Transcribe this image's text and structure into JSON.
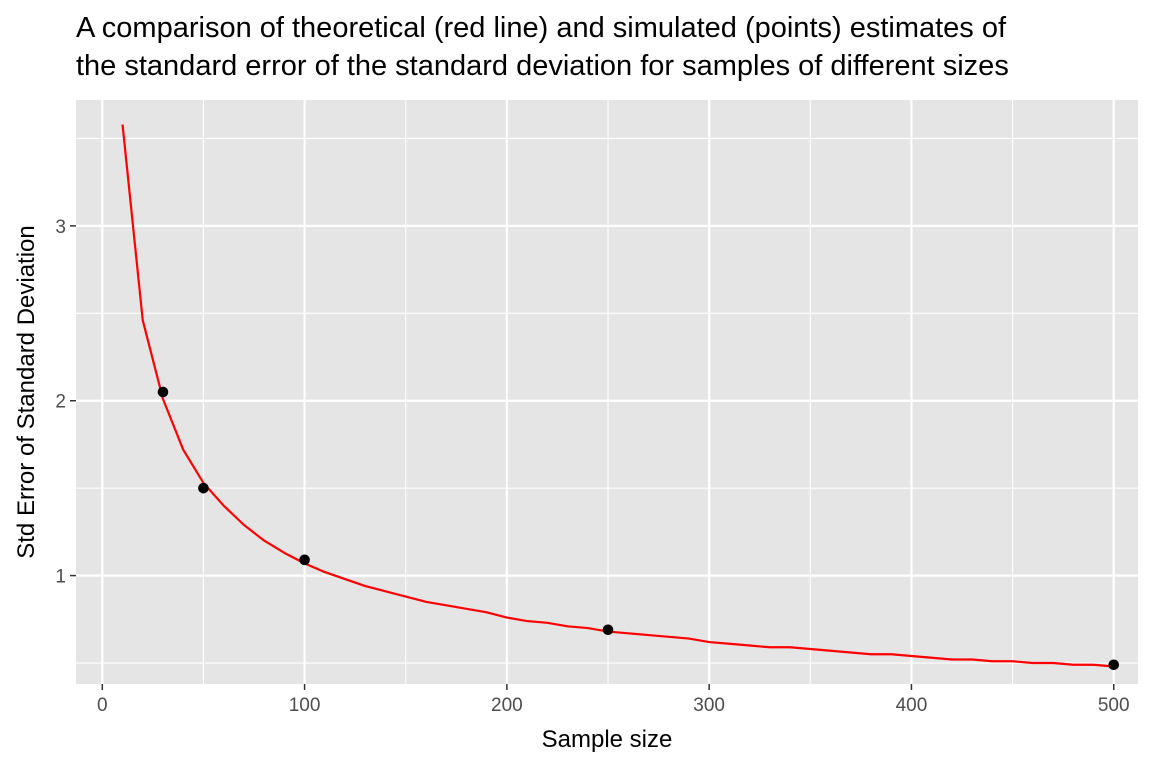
{
  "chart_data": {
    "type": "line",
    "title": "A comparison of theoretical (red line) and simulated (points) estimates of\nthe standard error of the standard deviation for samples of different sizes",
    "title_lines": [
      "A comparison of theoretical (red line) and simulated (points) estimates of",
      "the standard error of the standard deviation for samples of different sizes"
    ],
    "xlabel": "Sample size",
    "ylabel": "Std Error of Standard Deviation",
    "xlim": [
      -13,
      512
    ],
    "ylim": [
      0.38,
      3.72
    ],
    "x_ticks": [
      0,
      100,
      200,
      300,
      400,
      500
    ],
    "x_tick_labels": [
      "0",
      "100",
      "200",
      "300",
      "400",
      "500"
    ],
    "x_minor_ticks": [
      50,
      150,
      250,
      350,
      450
    ],
    "y_ticks": [
      1,
      2,
      3
    ],
    "y_tick_labels": [
      "1",
      "2",
      "3"
    ],
    "y_minor_ticks": [
      0.5,
      1.5,
      2.5,
      3.5
    ],
    "grid": true,
    "legend": "none",
    "series": [
      {
        "geom": "line",
        "color": "#ff0000",
        "x": [
          10,
          20,
          30,
          40,
          50,
          60,
          70,
          80,
          90,
          100,
          110,
          120,
          130,
          140,
          150,
          160,
          170,
          180,
          190,
          200,
          210,
          220,
          230,
          240,
          250,
          260,
          270,
          280,
          290,
          300,
          310,
          320,
          330,
          340,
          350,
          360,
          370,
          380,
          390,
          400,
          410,
          420,
          430,
          440,
          450,
          460,
          470,
          480,
          490,
          500
        ],
        "y": [
          3.58,
          2.46,
          2.01,
          1.72,
          1.53,
          1.4,
          1.29,
          1.2,
          1.13,
          1.07,
          1.02,
          0.98,
          0.94,
          0.91,
          0.88,
          0.85,
          0.83,
          0.81,
          0.79,
          0.76,
          0.74,
          0.73,
          0.71,
          0.7,
          0.68,
          0.67,
          0.66,
          0.65,
          0.64,
          0.62,
          0.61,
          0.6,
          0.59,
          0.59,
          0.58,
          0.57,
          0.56,
          0.55,
          0.55,
          0.54,
          0.53,
          0.52,
          0.52,
          0.51,
          0.51,
          0.5,
          0.5,
          0.49,
          0.49,
          0.48
        ]
      },
      {
        "geom": "point",
        "color": "#000000",
        "x": [
          30,
          50,
          100,
          250,
          500
        ],
        "y": [
          2.05,
          1.5,
          1.09,
          0.69,
          0.49
        ]
      }
    ],
    "colors": {
      "panel_background": "#e5e5e5",
      "grid": "#ffffff",
      "line": "#ff0000",
      "points": "#000000",
      "tick_label": "#4d4d4d",
      "axis_ticks": "#333333"
    }
  }
}
